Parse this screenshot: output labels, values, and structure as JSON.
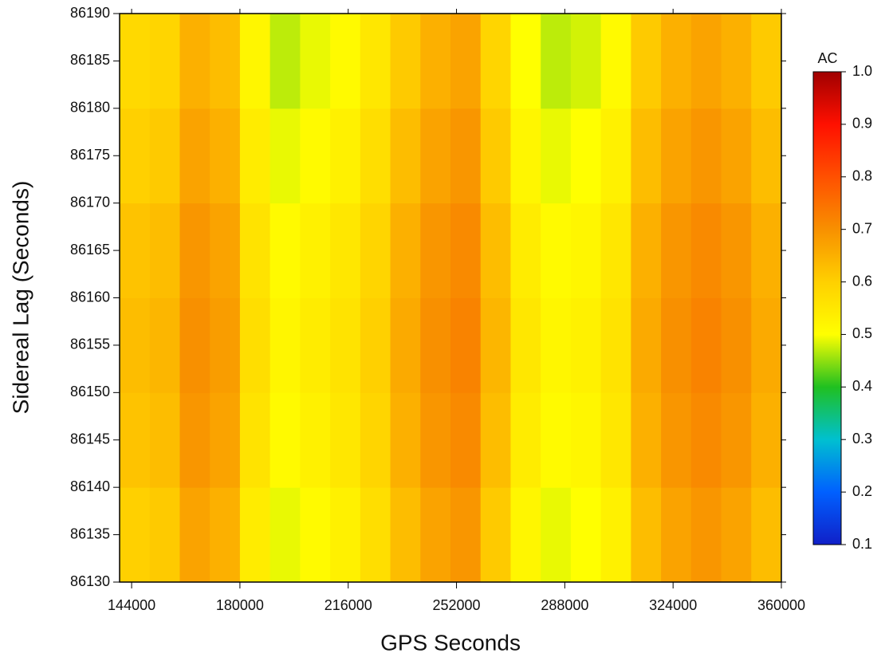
{
  "chart_data": {
    "type": "heatmap",
    "x_label": "GPS Seconds",
    "y_label": "Sidereal Lag (Seconds)",
    "xlim": [
      140000,
      360000
    ],
    "ylim": [
      86130,
      86190
    ],
    "xticks": [
      144000,
      180000,
      216000,
      252000,
      288000,
      324000,
      360000
    ],
    "yticks": [
      86130,
      86135,
      86140,
      86145,
      86150,
      86155,
      86160,
      86165,
      86170,
      86175,
      86180,
      86185,
      86190
    ],
    "x": [
      145000,
      155000,
      165000,
      175000,
      185000,
      195000,
      205000,
      215000,
      225000,
      235000,
      245000,
      255000,
      265000,
      275000,
      285000,
      295000,
      305000,
      315000,
      325000,
      335000,
      345000,
      355000
    ],
    "y": [
      86135,
      86145,
      86155,
      86165,
      86175,
      86185
    ],
    "z": [
      [
        0.6,
        0.61,
        0.67,
        0.65,
        0.54,
        0.49,
        0.51,
        0.53,
        0.57,
        0.63,
        0.67,
        0.69,
        0.61,
        0.52,
        0.49,
        0.5,
        0.53,
        0.63,
        0.67,
        0.69,
        0.67,
        0.63
      ],
      [
        0.62,
        0.63,
        0.69,
        0.67,
        0.56,
        0.51,
        0.53,
        0.55,
        0.59,
        0.65,
        0.69,
        0.71,
        0.63,
        0.54,
        0.51,
        0.52,
        0.55,
        0.65,
        0.69,
        0.71,
        0.69,
        0.65
      ],
      [
        0.63,
        0.64,
        0.7,
        0.68,
        0.57,
        0.52,
        0.54,
        0.56,
        0.6,
        0.66,
        0.7,
        0.72,
        0.64,
        0.55,
        0.52,
        0.53,
        0.56,
        0.66,
        0.7,
        0.72,
        0.7,
        0.66
      ],
      [
        0.62,
        0.63,
        0.69,
        0.67,
        0.56,
        0.51,
        0.53,
        0.55,
        0.59,
        0.65,
        0.69,
        0.71,
        0.63,
        0.54,
        0.51,
        0.52,
        0.55,
        0.65,
        0.69,
        0.71,
        0.69,
        0.65
      ],
      [
        0.6,
        0.61,
        0.67,
        0.65,
        0.54,
        0.49,
        0.51,
        0.53,
        0.57,
        0.63,
        0.67,
        0.69,
        0.61,
        0.52,
        0.49,
        0.5,
        0.53,
        0.63,
        0.67,
        0.69,
        0.67,
        0.63
      ],
      [
        0.58,
        0.59,
        0.65,
        0.63,
        0.52,
        0.47,
        0.49,
        0.51,
        0.55,
        0.61,
        0.65,
        0.67,
        0.59,
        0.5,
        0.47,
        0.48,
        0.51,
        0.61,
        0.65,
        0.67,
        0.65,
        0.61
      ]
    ],
    "colorbar_label": "AC",
    "clim": [
      0.1,
      1.0
    ],
    "cticks": [
      0.1,
      0.2,
      0.3,
      0.4,
      0.5,
      0.6,
      0.7,
      0.8,
      0.9,
      {
        "value": 1.0,
        "label": "1.0"
      }
    ],
    "colorscale": [
      [
        0.1,
        "#1020c8"
      ],
      [
        0.2,
        "#0060ff"
      ],
      [
        0.3,
        "#00c0d0"
      ],
      [
        0.4,
        "#20c020"
      ],
      [
        0.5,
        "#ffff00"
      ],
      [
        0.6,
        "#ffd000"
      ],
      [
        0.7,
        "#f89000"
      ],
      [
        0.8,
        "#ff5000"
      ],
      [
        0.9,
        "#ff1000"
      ],
      [
        1.0,
        "#a00000"
      ]
    ]
  }
}
